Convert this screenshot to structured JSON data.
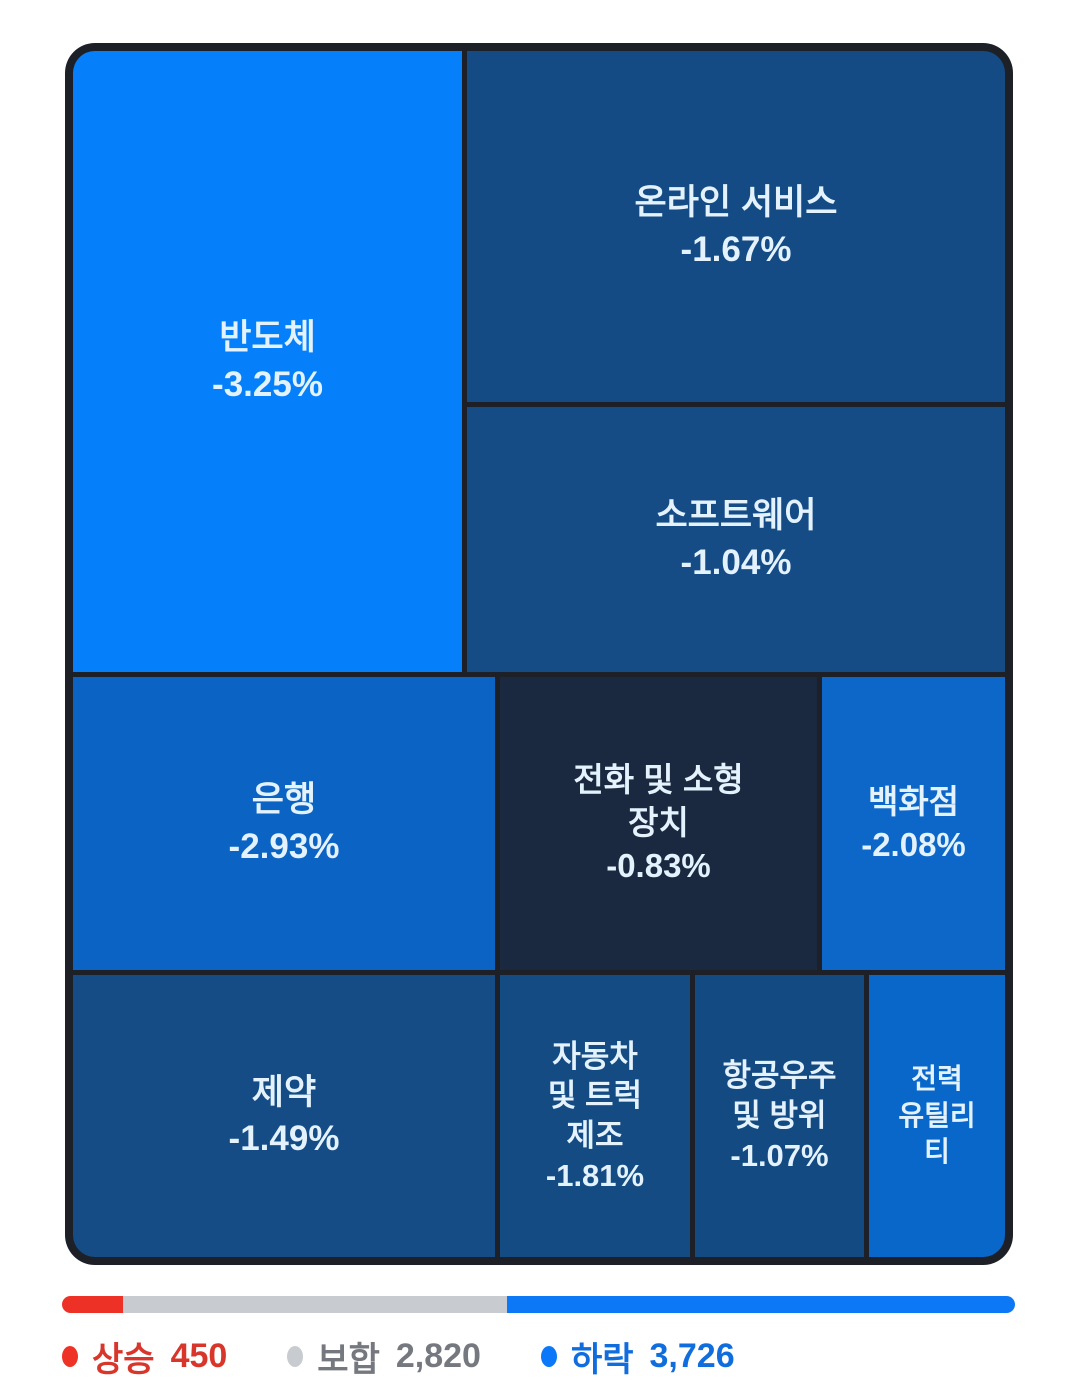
{
  "chart_data": {
    "type": "treemap",
    "title": "",
    "unit": "%",
    "legend_position": "bottom",
    "sectors": [
      {
        "label": "반도체",
        "pct_text": "-3.25%",
        "change_pct": -3.25,
        "color": "#0580fa"
      },
      {
        "label": "온라인 서비스",
        "pct_text": "-1.67%",
        "change_pct": -1.67,
        "color": "#144b84"
      },
      {
        "label": "소프트웨어",
        "pct_text": "-1.04%",
        "change_pct": -1.04,
        "color": "#154c85"
      },
      {
        "label": "은행",
        "pct_text": "-2.93%",
        "change_pct": -2.93,
        "color": "#0b63c4"
      },
      {
        "label": "전화 및 소형\n장치",
        "pct_text": "-0.83%",
        "change_pct": -0.83,
        "color": "#1b2940"
      },
      {
        "label": "백화점",
        "pct_text": "-2.08%",
        "change_pct": -2.08,
        "color": "#0c67c9"
      },
      {
        "label": "제약",
        "pct_text": "-1.49%",
        "change_pct": -1.49,
        "color": "#154c85"
      },
      {
        "label": "자동차\n및 트럭\n제조",
        "pct_text": "-1.81%",
        "change_pct": -1.81,
        "color": "#144b83"
      },
      {
        "label": "항공우주\n및 방위",
        "pct_text": "-1.07%",
        "change_pct": -1.07,
        "color": "#144a82"
      },
      {
        "label": "전력\n유틸리\n티",
        "pct_text": "",
        "change_pct": null,
        "color": "#0967c9"
      }
    ],
    "legend": [
      {
        "label": "상승",
        "value": "450",
        "color": "#ee3226"
      },
      {
        "label": "보합",
        "value": "2,820",
        "color": "#c8ccd0"
      },
      {
        "label": "하락",
        "value": "3,726",
        "color": "#0a78f8"
      }
    ],
    "bar_segments": [
      {
        "name": "up",
        "fraction": 0.0643,
        "color": "#ee3126"
      },
      {
        "name": "flat",
        "fraction": 0.4031,
        "color": "#c8ccd0"
      },
      {
        "name": "down",
        "fraction": 0.5326,
        "color": "#0d78f5"
      }
    ]
  }
}
